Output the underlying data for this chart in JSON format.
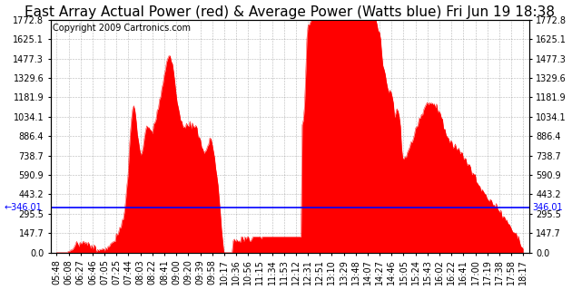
{
  "title": "East Array Actual Power (red) & Average Power (Watts blue) Fri Jun 19 18:38",
  "copyright": "Copyright 2009 Cartronics.com",
  "avg_power": 346.01,
  "ymax": 1772.8,
  "ymin": 0.0,
  "yticks": [
    0.0,
    147.7,
    295.5,
    443.2,
    590.9,
    738.7,
    886.4,
    1034.1,
    1181.9,
    1329.6,
    1477.3,
    1625.1,
    1772.8
  ],
  "xtick_labels": [
    "05:48",
    "06:08",
    "06:27",
    "06:46",
    "07:05",
    "07:25",
    "07:44",
    "08:03",
    "08:22",
    "08:41",
    "09:00",
    "09:20",
    "09:39",
    "09:58",
    "10:17",
    "10:36",
    "10:56",
    "11:15",
    "11:34",
    "11:53",
    "12:12",
    "12:31",
    "12:51",
    "13:10",
    "13:29",
    "13:48",
    "14:07",
    "14:27",
    "14:46",
    "15:05",
    "15:24",
    "15:43",
    "16:02",
    "16:22",
    "16:41",
    "17:00",
    "17:19",
    "17:38",
    "17:58",
    "18:17"
  ],
  "bg_color": "#ffffff",
  "plot_bg_color": "#ffffff",
  "grid_color": "#888888",
  "line_color": "#0000ff",
  "fill_color": "#ff0000",
  "title_fontsize": 11,
  "copyright_fontsize": 7,
  "tick_fontsize": 7,
  "avg_label_fontsize": 7
}
